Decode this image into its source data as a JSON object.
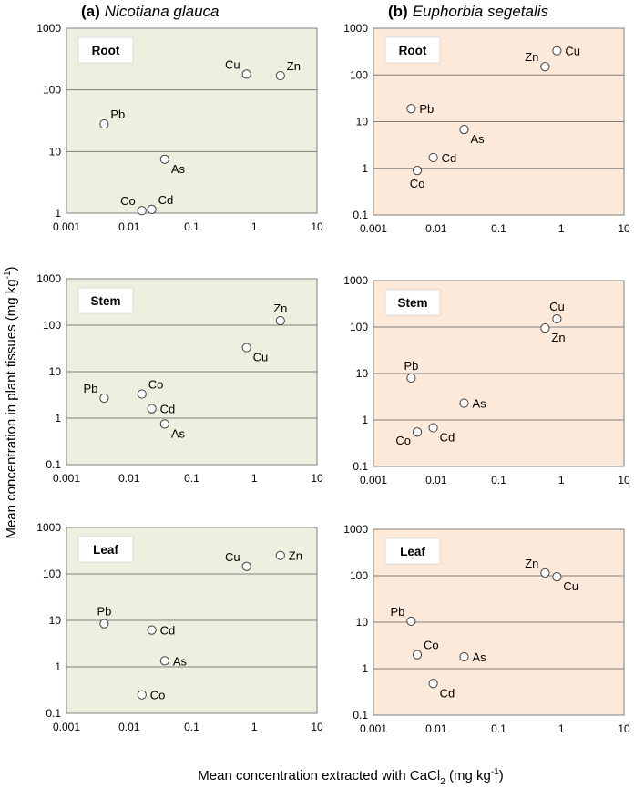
{
  "figure": {
    "ylabel": "Mean concentration  in plant tissues (mg kg",
    "ylabel_sup": "-1",
    "ylabel_end": ")",
    "xlabel": "Mean concentration extracted with CaCl",
    "xlabel_sub": "2",
    "xlabel_end": " (mg kg",
    "xlabel_sup": "-1",
    "xlabel_close": ")"
  },
  "colors": {
    "nicotiana_bg": "#EBF1DE",
    "euphorbia_bg": "#FDE9D9",
    "gridline": "#7F7F7F",
    "marker_fill": "#FFFFFF",
    "marker_stroke": "#404040"
  },
  "panels": [
    {
      "letter": "(a)",
      "species": "Nicotiana glauca"
    },
    {
      "letter": "(b)",
      "species": "Euphorbia segetalis"
    }
  ],
  "chart_data": [
    {
      "type": "scatter",
      "panel": "(a) Nicotiana glauca",
      "tissue": "Root",
      "bg": "nicotiana_bg",
      "xscale": "log",
      "yscale": "log",
      "xlim": [
        0.001,
        10
      ],
      "ylim": [
        1,
        1000
      ],
      "xticks": [
        "0.001",
        "0.01",
        "0.1",
        "1",
        "10"
      ],
      "yticks": [
        "1",
        "10",
        "100",
        "1000"
      ],
      "grid": "horizontal",
      "points": [
        {
          "label": "Cu",
          "x": 0.75,
          "y": 180,
          "pos": "upper-left"
        },
        {
          "label": "Zn",
          "x": 2.6,
          "y": 170,
          "pos": "upper-right"
        },
        {
          "label": "Pb",
          "x": 0.004,
          "y": 28,
          "pos": "upper-right"
        },
        {
          "label": "As",
          "x": 0.037,
          "y": 7.5,
          "pos": "lower-right"
        },
        {
          "label": "Co",
          "x": 0.016,
          "y": 1.1,
          "pos": "upper-left"
        },
        {
          "label": "Cd",
          "x": 0.023,
          "y": 1.15,
          "pos": "upper-right"
        }
      ]
    },
    {
      "type": "scatter",
      "panel": "(b) Euphorbia segetalis",
      "tissue": "Root",
      "bg": "euphorbia_bg",
      "xscale": "log",
      "yscale": "log",
      "xlim": [
        0.001,
        10
      ],
      "ylim": [
        0.1,
        1000
      ],
      "xticks": [
        "0.001",
        "0.01",
        "0.1",
        "1",
        "10"
      ],
      "yticks": [
        "0.1",
        "1",
        "10",
        "100",
        "1000"
      ],
      "grid": "horizontal",
      "points": [
        {
          "label": "Cu",
          "x": 0.85,
          "y": 330,
          "pos": "right"
        },
        {
          "label": "Zn",
          "x": 0.55,
          "y": 150,
          "pos": "upper-left"
        },
        {
          "label": "Pb",
          "x": 0.004,
          "y": 19,
          "pos": "right"
        },
        {
          "label": "As",
          "x": 0.028,
          "y": 6.8,
          "pos": "lower-right"
        },
        {
          "label": "Cd",
          "x": 0.009,
          "y": 1.7,
          "pos": "right"
        },
        {
          "label": "Co",
          "x": 0.005,
          "y": 0.9,
          "pos": "below"
        }
      ]
    },
    {
      "type": "scatter",
      "panel": "(a) Nicotiana glauca",
      "tissue": "Stem",
      "bg": "nicotiana_bg",
      "xscale": "log",
      "yscale": "log",
      "xlim": [
        0.001,
        10
      ],
      "ylim": [
        0.1,
        1000
      ],
      "xticks": [
        "0.001",
        "0.01",
        "0.1",
        "1",
        "10"
      ],
      "yticks": [
        "0.1",
        "1",
        "10",
        "100",
        "1000"
      ],
      "grid": "horizontal",
      "points": [
        {
          "label": "Zn",
          "x": 2.6,
          "y": 125,
          "pos": "above"
        },
        {
          "label": "Cu",
          "x": 0.75,
          "y": 33,
          "pos": "lower-right"
        },
        {
          "label": "Pb",
          "x": 0.004,
          "y": 2.7,
          "pos": "upper-left"
        },
        {
          "label": "Co",
          "x": 0.016,
          "y": 3.3,
          "pos": "upper-right"
        },
        {
          "label": "Cd",
          "x": 0.023,
          "y": 1.6,
          "pos": "right"
        },
        {
          "label": "As",
          "x": 0.037,
          "y": 0.75,
          "pos": "lower-right"
        }
      ]
    },
    {
      "type": "scatter",
      "panel": "(b) Euphorbia segetalis",
      "tissue": "Stem",
      "bg": "euphorbia_bg",
      "xscale": "log",
      "yscale": "log",
      "xlim": [
        0.001,
        10
      ],
      "ylim": [
        0.1,
        1000
      ],
      "xticks": [
        "0.001",
        "0.01",
        "0.1",
        "1",
        "10"
      ],
      "yticks": [
        "0.1",
        "1",
        "10",
        "100",
        "1000"
      ],
      "grid": "horizontal",
      "points": [
        {
          "label": "Cu",
          "x": 0.85,
          "y": 150,
          "pos": "above"
        },
        {
          "label": "Zn",
          "x": 0.55,
          "y": 95,
          "pos": "lower-right"
        },
        {
          "label": "Pb",
          "x": 0.004,
          "y": 8,
          "pos": "above"
        },
        {
          "label": "As",
          "x": 0.028,
          "y": 2.3,
          "pos": "right"
        },
        {
          "label": "Co",
          "x": 0.005,
          "y": 0.55,
          "pos": "lower-left"
        },
        {
          "label": "Cd",
          "x": 0.009,
          "y": 0.68,
          "pos": "lower-right"
        }
      ]
    },
    {
      "type": "scatter",
      "panel": "(a) Nicotiana glauca",
      "tissue": "Leaf",
      "bg": "nicotiana_bg",
      "xscale": "log",
      "yscale": "log",
      "xlim": [
        0.001,
        10
      ],
      "ylim": [
        0.1,
        1000
      ],
      "xticks": [
        "0.001",
        "0.01",
        "0.1",
        "1",
        "10"
      ],
      "yticks": [
        "0.1",
        "1",
        "10",
        "100",
        "1000"
      ],
      "grid": "horizontal",
      "points": [
        {
          "label": "Cu",
          "x": 0.75,
          "y": 145,
          "pos": "upper-left"
        },
        {
          "label": "Zn",
          "x": 2.6,
          "y": 250,
          "pos": "right"
        },
        {
          "label": "Pb",
          "x": 0.004,
          "y": 8.5,
          "pos": "above"
        },
        {
          "label": "Cd",
          "x": 0.023,
          "y": 6.2,
          "pos": "right"
        },
        {
          "label": "As",
          "x": 0.037,
          "y": 1.35,
          "pos": "right"
        },
        {
          "label": "Co",
          "x": 0.016,
          "y": 0.25,
          "pos": "right"
        }
      ]
    },
    {
      "type": "scatter",
      "panel": "(b) Euphorbia segetalis",
      "tissue": "Leaf",
      "bg": "euphorbia_bg",
      "xscale": "log",
      "yscale": "log",
      "xlim": [
        0.001,
        10
      ],
      "ylim": [
        0.1,
        1000
      ],
      "xticks": [
        "0.001",
        "0.01",
        "0.1",
        "1",
        "10"
      ],
      "yticks": [
        "0.1",
        "1",
        "10",
        "100",
        "1000"
      ],
      "grid": "horizontal",
      "points": [
        {
          "label": "Zn",
          "x": 0.55,
          "y": 115,
          "pos": "upper-left"
        },
        {
          "label": "Cu",
          "x": 0.85,
          "y": 95,
          "pos": "lower-right"
        },
        {
          "label": "Pb",
          "x": 0.004,
          "y": 10.5,
          "pos": "upper-left"
        },
        {
          "label": "Co",
          "x": 0.005,
          "y": 2,
          "pos": "upper-right"
        },
        {
          "label": "As",
          "x": 0.028,
          "y": 1.8,
          "pos": "right"
        },
        {
          "label": "Cd",
          "x": 0.009,
          "y": 0.48,
          "pos": "lower-right"
        }
      ]
    }
  ]
}
